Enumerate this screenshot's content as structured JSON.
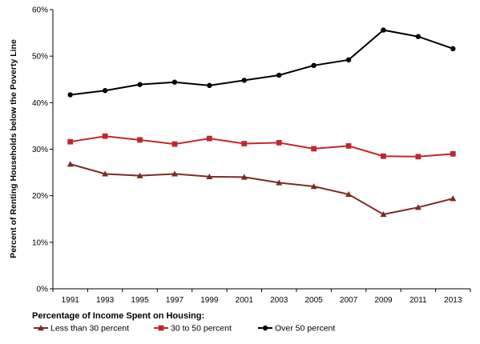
{
  "chart_data": {
    "type": "line",
    "title": "",
    "xlabel": "",
    "ylabel": "Percent of Renting Households below the Poverty Line",
    "x": [
      "1991",
      "1993",
      "1995",
      "1997",
      "1999",
      "2001",
      "2003",
      "2005",
      "2007",
      "2009",
      "2011",
      "2013"
    ],
    "ylim": [
      0,
      60
    ],
    "yticks": [
      "0%",
      "10%",
      "20%",
      "30%",
      "40%",
      "50%",
      "60%"
    ],
    "grid": false,
    "legend_title": "Percentage of Income Spent on Housing:",
    "legend_position": "bottom",
    "series": [
      {
        "name": "Less than 30 percent",
        "color": "#7b2c22",
        "marker": "triangle",
        "values": [
          26.8,
          24.7,
          24.3,
          24.7,
          24.1,
          24.0,
          22.8,
          22.0,
          20.3,
          16.0,
          17.5,
          19.4
        ]
      },
      {
        "name": "30 to 50 percent",
        "color": "#c0272d",
        "marker": "square",
        "values": [
          31.6,
          32.8,
          32.0,
          31.1,
          32.3,
          31.2,
          31.4,
          30.1,
          30.7,
          28.5,
          28.4,
          29.0
        ]
      },
      {
        "name": "Over 50 percent",
        "color": "#000000",
        "marker": "circle",
        "values": [
          41.7,
          42.6,
          43.9,
          44.4,
          43.7,
          44.8,
          45.9,
          48.0,
          49.2,
          55.6,
          54.2,
          51.6
        ]
      }
    ]
  }
}
